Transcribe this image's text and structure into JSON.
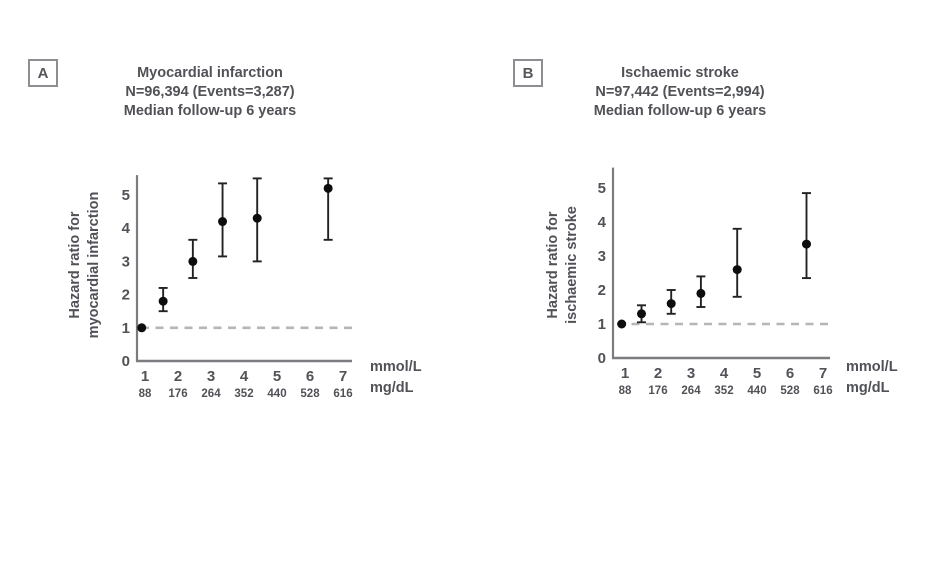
{
  "colors": {
    "text": "#515257",
    "axis": "#7b7c7f",
    "reference_dash": "#b5b6b8",
    "point": "#0d0d0d",
    "error_bar": "#222222",
    "panel_box_border": "#8d8e91"
  },
  "panels": [
    {
      "letter": "A",
      "title": "Myocardial infarction",
      "subtitle_n": "N=96,394 (Events=3,287)",
      "subtitle_followup": "Median follow-up 6 years",
      "ylabel_line1": "Hazard ratio for",
      "ylabel_line2": "myocardial infarction"
    },
    {
      "letter": "B",
      "title": "Ischaemic stroke",
      "subtitle_n": "N=97,442 (Events=2,994)",
      "subtitle_followup": "Median follow-up 6 years",
      "ylabel_line1": "Hazard ratio for",
      "ylabel_line2": "ischaemic stroke"
    }
  ],
  "x_axis": {
    "unit_top": "mmol/L",
    "unit_bottom": "mg/dL"
  },
  "chart_data": [
    {
      "type": "scatter",
      "title": "Myocardial infarction",
      "n_label": "N=96,394 (Events=3,287)",
      "followup_label": "Median follow-up 6 years",
      "ylabel": "Hazard ratio for myocardial infarction",
      "xlabel_units": [
        "mmol/L",
        "mg/dL"
      ],
      "x_ticks_mmol": [
        "1",
        "2",
        "3",
        "4",
        "5",
        "6",
        "7"
      ],
      "x_ticks_mgdl": [
        "88",
        "176",
        "264",
        "352",
        "440",
        "528",
        "616"
      ],
      "y_ticks": [
        "0",
        "1",
        "2",
        "3",
        "4",
        "5"
      ],
      "xlim": [
        0.75,
        7.4
      ],
      "ylim": [
        0,
        5.6
      ],
      "grid": false,
      "legend": "none",
      "reference_line_y": 1,
      "points": [
        {
          "x": 0.9,
          "hr": 1.0,
          "lo": null,
          "hi": null
        },
        {
          "x": 1.55,
          "hr": 1.8,
          "lo": 1.5,
          "hi": 2.2
        },
        {
          "x": 2.45,
          "hr": 3.0,
          "lo": 2.5,
          "hi": 3.65
        },
        {
          "x": 3.35,
          "hr": 4.2,
          "lo": 3.15,
          "hi": 5.35
        },
        {
          "x": 4.4,
          "hr": 4.3,
          "lo": 3.0,
          "hi": 5.5
        },
        {
          "x": 6.55,
          "hr": 5.2,
          "lo": 3.65,
          "hi": 5.5
        }
      ]
    },
    {
      "type": "scatter",
      "title": "Ischaemic stroke",
      "n_label": "N=97,442 (Events=2,994)",
      "followup_label": "Median follow-up 6 years",
      "ylabel": "Hazard ratio for ischaemic stroke",
      "xlabel_units": [
        "mmol/L",
        "mg/dL"
      ],
      "x_ticks_mmol": [
        "1",
        "2",
        "3",
        "4",
        "5",
        "6",
        "7"
      ],
      "x_ticks_mgdl": [
        "88",
        "176",
        "264",
        "352",
        "440",
        "528",
        "616"
      ],
      "y_ticks": [
        "0",
        "1",
        "2",
        "3",
        "4",
        "5"
      ],
      "xlim": [
        0.75,
        7.4
      ],
      "ylim": [
        0,
        5.2
      ],
      "grid": false,
      "legend": "none",
      "reference_line_y": 1,
      "points": [
        {
          "x": 0.9,
          "hr": 1.0,
          "lo": null,
          "hi": null
        },
        {
          "x": 1.5,
          "hr": 1.3,
          "lo": 1.05,
          "hi": 1.55
        },
        {
          "x": 2.4,
          "hr": 1.6,
          "lo": 1.3,
          "hi": 2.0
        },
        {
          "x": 3.3,
          "hr": 1.9,
          "lo": 1.5,
          "hi": 2.4
        },
        {
          "x": 4.4,
          "hr": 2.6,
          "lo": 1.8,
          "hi": 3.8
        },
        {
          "x": 6.5,
          "hr": 3.35,
          "lo": 2.35,
          "hi": 4.85
        }
      ]
    }
  ]
}
